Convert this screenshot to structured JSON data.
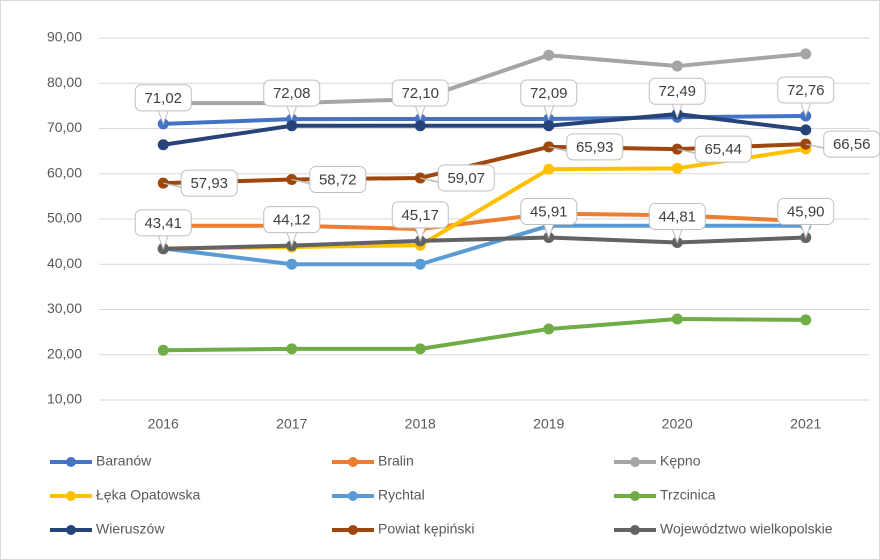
{
  "chart_data": {
    "type": "line",
    "categories": [
      "2016",
      "2017",
      "2018",
      "2019",
      "2020",
      "2021"
    ],
    "ylim": [
      10,
      90
    ],
    "yticks": [
      {
        "value": 10,
        "label": "10,00"
      },
      {
        "value": 20,
        "label": "20,00"
      },
      {
        "value": 30,
        "label": "30,00"
      },
      {
        "value": 40,
        "label": "40,00"
      },
      {
        "value": 50,
        "label": "50,00"
      },
      {
        "value": 60,
        "label": "60,00"
      },
      {
        "value": 70,
        "label": "70,00"
      },
      {
        "value": 80,
        "label": "80,00"
      },
      {
        "value": 90,
        "label": "90,00"
      }
    ],
    "grid": true,
    "legend": "bottom",
    "series": [
      {
        "name": "Baranów",
        "color": "#4472c4",
        "values": [
          71.02,
          72.08,
          72.1,
          72.09,
          72.49,
          72.76
        ],
        "value_labels": [
          "71,02",
          "72,08",
          "72,10",
          "72,09",
          "72,49",
          "72,76"
        ]
      },
      {
        "name": "Bralin",
        "color": "#ed7d31",
        "values": [
          48.5,
          48.5,
          47.8,
          51.2,
          50.8,
          49.5
        ]
      },
      {
        "name": "Kępno",
        "color": "#a5a5a5",
        "values": [
          75.6,
          75.6,
          76.5,
          86.2,
          83.8,
          86.5
        ]
      },
      {
        "name": "Łęka Opatowska",
        "color": "#ffc000",
        "values": [
          43.5,
          43.8,
          44.2,
          61.0,
          61.2,
          65.5
        ]
      },
      {
        "name": "Rychtal",
        "color": "#5b9bd5",
        "values": [
          43.5,
          40.0,
          40.0,
          48.5,
          48.5,
          48.5
        ]
      },
      {
        "name": "Trzcinica",
        "color": "#70ad47",
        "values": [
          21.0,
          21.3,
          21.3,
          25.7,
          27.9,
          27.7
        ]
      },
      {
        "name": "Wieruszów",
        "color": "#264478",
        "values": [
          66.4,
          70.6,
          70.6,
          70.6,
          73.2,
          69.7
        ]
      },
      {
        "name": "Powiat kępiński",
        "color": "#9e480e",
        "values": [
          57.93,
          58.72,
          59.07,
          65.93,
          65.44,
          66.56
        ],
        "value_labels": [
          "57,93",
          "58,72",
          "59,07",
          "65,93",
          "65,44",
          "66,56"
        ]
      },
      {
        "name": "Województwo wielkopolskie",
        "color": "#636363",
        "values": [
          43.41,
          44.12,
          45.17,
          45.91,
          44.81,
          45.9
        ],
        "value_labels": [
          "43,41",
          "44,12",
          "45,17",
          "45,91",
          "44,81",
          "45,90"
        ]
      }
    ]
  }
}
